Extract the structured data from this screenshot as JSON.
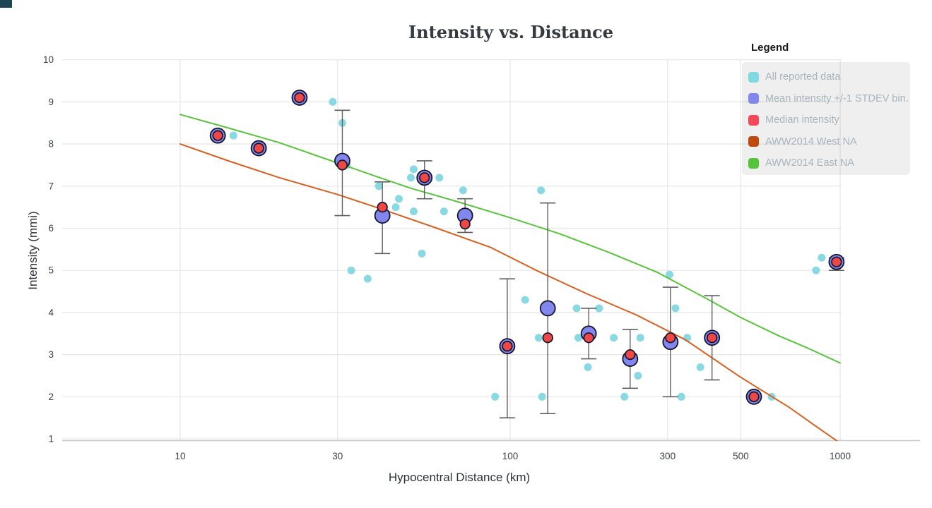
{
  "chart_data": {
    "type": "scatter",
    "title": "Intensity vs. Distance",
    "xlabel": "Hypocentral Distance (km)",
    "ylabel": "Intensity (mmi)",
    "x_scale": "log",
    "x_ticks": [
      10,
      30,
      100,
      300,
      500,
      1000
    ],
    "y_ticks": [
      1,
      2,
      3,
      4,
      5,
      6,
      7,
      8,
      9,
      10
    ],
    "x_range_km": [
      4.4,
      1010
    ],
    "y_range_mmi": [
      0.95,
      10.0
    ],
    "grid": true,
    "legend_position": "top-right",
    "all_reported_points": [
      [
        14.5,
        8.2
      ],
      [
        29,
        9.0
      ],
      [
        31,
        8.5
      ],
      [
        32,
        7.5
      ],
      [
        33,
        5.0
      ],
      [
        37,
        4.8
      ],
      [
        40,
        7.0
      ],
      [
        45,
        6.5
      ],
      [
        46,
        6.7
      ],
      [
        50,
        7.2
      ],
      [
        51,
        7.4
      ],
      [
        51,
        6.4
      ],
      [
        54,
        5.4
      ],
      [
        61,
        7.2
      ],
      [
        63,
        6.4
      ],
      [
        72,
        6.9
      ],
      [
        90,
        2.0
      ],
      [
        111,
        4.3
      ],
      [
        122,
        3.4
      ],
      [
        124,
        6.9
      ],
      [
        125,
        2.0
      ],
      [
        159,
        4.1
      ],
      [
        161,
        3.4
      ],
      [
        172,
        2.7
      ],
      [
        186,
        4.1
      ],
      [
        206,
        3.4
      ],
      [
        222,
        2.0
      ],
      [
        244,
        2.5
      ],
      [
        248,
        3.4
      ],
      [
        304,
        4.9
      ],
      [
        317,
        4.1
      ],
      [
        330,
        2.0
      ],
      [
        344,
        3.4
      ],
      [
        377,
        2.7
      ],
      [
        620,
        2.0
      ],
      [
        845,
        5.0
      ],
      [
        879,
        5.3
      ]
    ],
    "binned_stats": [
      {
        "distance_km": 13,
        "mean": 8.2,
        "median": 8.2,
        "stdev_top": null,
        "stdev_bottom": null
      },
      {
        "distance_km": 17.3,
        "mean": 7.9,
        "median": 7.9,
        "stdev_top": null,
        "stdev_bottom": null
      },
      {
        "distance_km": 23,
        "mean": 9.1,
        "median": 9.1,
        "stdev_top": null,
        "stdev_bottom": null
      },
      {
        "distance_km": 31,
        "mean": 7.6,
        "median": 7.5,
        "stdev_top": 8.8,
        "stdev_bottom": 6.3
      },
      {
        "distance_km": 41,
        "mean": 6.3,
        "median": 6.5,
        "stdev_top": 7.1,
        "stdev_bottom": 5.4
      },
      {
        "distance_km": 55,
        "mean": 7.2,
        "median": 7.2,
        "stdev_top": 7.6,
        "stdev_bottom": 6.7
      },
      {
        "distance_km": 73,
        "mean": 6.3,
        "median": 6.1,
        "stdev_top": 6.7,
        "stdev_bottom": 5.9
      },
      {
        "distance_km": 98,
        "mean": 3.2,
        "median": 3.2,
        "stdev_top": 4.8,
        "stdev_bottom": 1.5
      },
      {
        "distance_km": 130,
        "mean": 4.1,
        "median": 3.4,
        "stdev_top": 6.6,
        "stdev_bottom": 1.6
      },
      {
        "distance_km": 173,
        "mean": 3.5,
        "median": 3.4,
        "stdev_top": 4.1,
        "stdev_bottom": 2.9
      },
      {
        "distance_km": 231,
        "mean": 2.9,
        "median": 3.0,
        "stdev_top": 3.6,
        "stdev_bottom": 2.2
      },
      {
        "distance_km": 306,
        "mean": 3.3,
        "median": 3.4,
        "stdev_top": 4.6,
        "stdev_bottom": 2.0
      },
      {
        "distance_km": 409,
        "mean": 3.4,
        "median": 3.4,
        "stdev_top": 4.4,
        "stdev_bottom": 2.4
      },
      {
        "distance_km": 548,
        "mean": 2.0,
        "median": 2.0,
        "stdev_top": null,
        "stdev_bottom": null
      },
      {
        "distance_km": 975,
        "mean": 5.2,
        "median": 5.2,
        "stdev_top": 5.3,
        "stdev_bottom": 5.0
      }
    ],
    "lines": [
      {
        "name": "AWW2014 West NA",
        "color": "#d95f1e",
        "points": [
          [
            10,
            8.0
          ],
          [
            14,
            7.6
          ],
          [
            20,
            7.2
          ],
          [
            30,
            6.8
          ],
          [
            42,
            6.42
          ],
          [
            60,
            6.0
          ],
          [
            87,
            5.55
          ],
          [
            120,
            5.0
          ],
          [
            170,
            4.45
          ],
          [
            240,
            3.95
          ],
          [
            340,
            3.35
          ],
          [
            500,
            2.46
          ],
          [
            700,
            1.75
          ],
          [
            880,
            1.2
          ],
          [
            1000,
            0.9
          ]
        ]
      },
      {
        "name": "AWW2014 East NA",
        "color": "#58c43c",
        "points": [
          [
            10,
            8.7
          ],
          [
            14,
            8.38
          ],
          [
            20,
            8.03
          ],
          [
            30,
            7.55
          ],
          [
            42,
            7.15
          ],
          [
            50,
            6.95
          ],
          [
            70,
            6.62
          ],
          [
            100,
            6.25
          ],
          [
            140,
            5.88
          ],
          [
            200,
            5.42
          ],
          [
            280,
            4.95
          ],
          [
            400,
            4.3
          ],
          [
            500,
            3.88
          ],
          [
            650,
            3.45
          ],
          [
            800,
            3.15
          ],
          [
            1000,
            2.8
          ]
        ]
      }
    ]
  },
  "legend": {
    "title": "Legend",
    "items": [
      {
        "label": "All reported data",
        "color": "#7fd9e3"
      },
      {
        "label": "Mean intensity +/-1 STDEV bin…",
        "color": "#8287f0"
      },
      {
        "label": "Median intensity",
        "color": "#f5465a"
      },
      {
        "label": "AWW2014 West NA",
        "color": "#bf490e"
      },
      {
        "label": "AWW2014 East NA",
        "color": "#56c43a"
      }
    ]
  },
  "style": {
    "all_reported_color": "#89d9e3",
    "mean_marker_color": "#8287ee",
    "median_marker_color": "#ef4747",
    "marker_outline_color": "#15152a",
    "error_bar_color": "#5f5f5f",
    "grid_color": "#e6e6e6",
    "axis_line_color": "#c8c8c8"
  }
}
